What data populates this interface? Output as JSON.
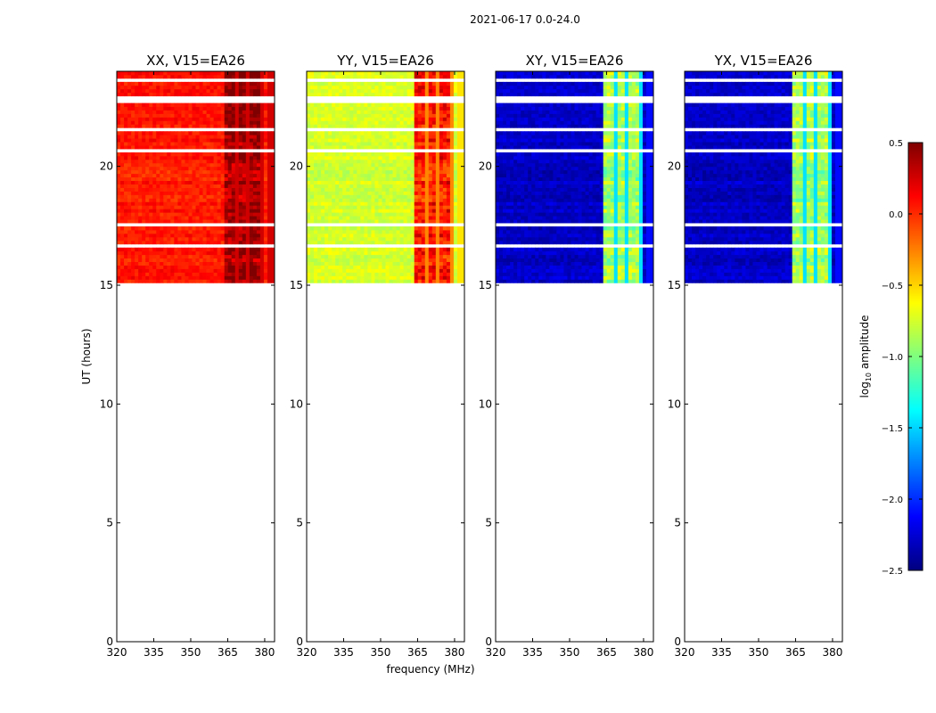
{
  "chart_data": {
    "type": "heatmap",
    "suptitle": "2021-06-17 0.0-24.0",
    "ylabel": "UT (hours)",
    "xlabel": "frequency (MHz)",
    "xlim": [
      320,
      384
    ],
    "ylim": [
      0,
      24
    ],
    "xticks": [
      "320",
      "335",
      "350",
      "365",
      "380"
    ],
    "yticks": [
      "0",
      "5",
      "10",
      "15",
      "20"
    ],
    "data_time_range": [
      15.1,
      24.0
    ],
    "rfi_band_mhz": [
      363,
      380
    ],
    "panels": [
      {
        "title": "XX, V15=EA26",
        "baseline": 0.05,
        "rfi_level": 0.4
      },
      {
        "title": "YY, V15=EA26",
        "baseline": -0.75,
        "rfi_level": 0.05
      },
      {
        "title": "XY, V15=EA26",
        "baseline": -2.3,
        "rfi_level": -0.9
      },
      {
        "title": "YX, V15=EA26",
        "baseline": -2.3,
        "rfi_level": -0.9
      }
    ],
    "colorbar": {
      "label_prefix": "log",
      "label_sub": "10",
      "label_suffix": " amplitude",
      "range": [
        -2.5,
        0.5
      ],
      "ticks": [
        "0.5",
        "0.0",
        "−0.5",
        "−1.0",
        "−1.5",
        "−2.0",
        "−2.5"
      ],
      "cmap": [
        "#00007f",
        "#0000ff",
        "#007fff",
        "#00ffff",
        "#7fff7f",
        "#ffff00",
        "#ff7f00",
        "#ff0000",
        "#7f0000"
      ]
    }
  }
}
